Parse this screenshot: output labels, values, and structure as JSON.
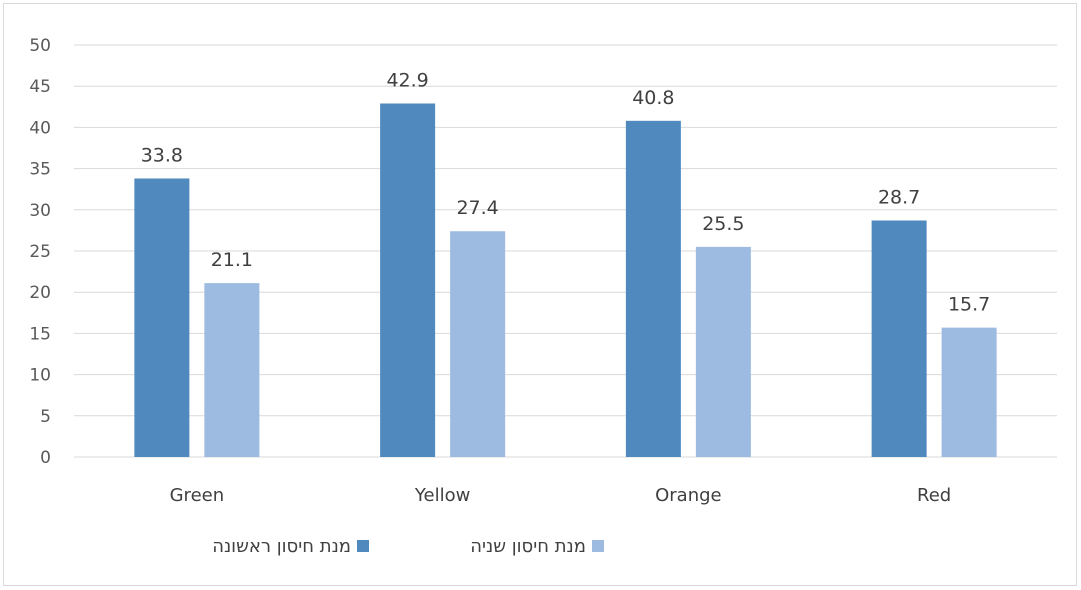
{
  "chart_data": {
    "type": "bar",
    "categories": [
      "Green",
      "Yellow",
      "Orange",
      "Red"
    ],
    "series": [
      {
        "name": "מנת חיסון ראשונה",
        "values": [
          33.8,
          42.9,
          40.8,
          28.7
        ],
        "color": "#4f89be"
      },
      {
        "name": "מנת חיסון שניה",
        "values": [
          21.1,
          27.4,
          25.5,
          15.7
        ],
        "color": "#9dbbe0"
      }
    ],
    "title": "",
    "xlabel": "",
    "ylabel": "",
    "ylim": [
      0,
      50
    ],
    "yticks": [
      0,
      5,
      10,
      15,
      20,
      25,
      30,
      35,
      40,
      45,
      50
    ],
    "grid": true,
    "legend_position": "bottom",
    "data_labels": true
  }
}
